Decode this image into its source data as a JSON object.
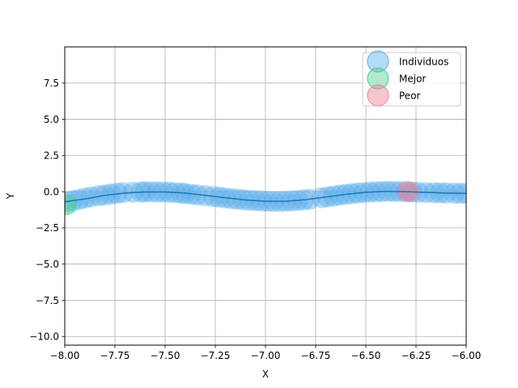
{
  "chart_data": {
    "type": "scatter",
    "title": "",
    "xlabel": "X",
    "ylabel": "Y",
    "xlim": [
      -8.0,
      -6.0
    ],
    "ylim": [
      -10.6,
      10.0
    ],
    "xticks": [
      -8.0,
      -7.75,
      -7.5,
      -7.25,
      -7.0,
      -6.75,
      -6.5,
      -6.25,
      -6.0
    ],
    "xtick_labels": [
      "−8.00",
      "−7.75",
      "−7.50",
      "−7.25",
      "−7.00",
      "−6.75",
      "−6.50",
      "−6.25",
      "−6.00"
    ],
    "yticks": [
      -10.0,
      -7.5,
      -5.0,
      -2.5,
      0.0,
      2.5,
      5.0,
      7.5
    ],
    "ytick_labels": [
      "−10.0",
      "−7.5",
      "−5.0",
      "−2.5",
      "0.0",
      "2.5",
      "5.0",
      "7.5"
    ],
    "grid": true,
    "legend_position": "top-right",
    "curve": {
      "x": [
        -8.0,
        -7.9,
        -7.8,
        -7.7,
        -7.6,
        -7.5,
        -7.4,
        -7.3,
        -7.2,
        -7.1,
        -7.0,
        -6.9,
        -6.8,
        -6.7,
        -6.6,
        -6.5,
        -6.4,
        -6.3,
        -6.2,
        -6.1,
        -6.0
      ],
      "y": [
        -0.7,
        -0.5,
        -0.25,
        -0.1,
        -0.02,
        -0.02,
        -0.1,
        -0.25,
        -0.42,
        -0.57,
        -0.66,
        -0.66,
        -0.55,
        -0.37,
        -0.18,
        -0.04,
        0.02,
        0.0,
        -0.05,
        -0.1,
        -0.12
      ],
      "color": "#1f77b4"
    },
    "series": [
      {
        "name": "Individuos",
        "color": "#5aaeeb",
        "x": [
          -7.99,
          -7.96,
          -7.93,
          -7.9,
          -7.87,
          -7.83,
          -7.8,
          -7.77,
          -7.74,
          -7.71,
          -7.66,
          -7.62,
          -7.6,
          -7.57,
          -7.54,
          -7.51,
          -7.48,
          -7.45,
          -7.42,
          -7.4,
          -7.37,
          -7.34,
          -7.3,
          -7.26,
          -7.23,
          -7.2,
          -7.17,
          -7.14,
          -7.11,
          -7.08,
          -7.05,
          -7.02,
          -6.99,
          -6.96,
          -6.93,
          -6.9,
          -6.87,
          -6.84,
          -6.81,
          -6.78,
          -6.72,
          -6.69,
          -6.66,
          -6.63,
          -6.6,
          -6.57,
          -6.54,
          -6.51,
          -6.48,
          -6.45,
          -6.42,
          -6.39,
          -6.36,
          -6.33,
          -6.3,
          -6.27,
          -6.24,
          -6.2,
          -6.16,
          -6.13,
          -6.1,
          -6.06,
          -6.03,
          -6.0
        ],
        "y": [
          -0.7,
          -0.62,
          -0.55,
          -0.45,
          -0.36,
          -0.28,
          -0.22,
          -0.16,
          -0.11,
          -0.07,
          -0.04,
          -0.02,
          -0.01,
          -0.01,
          -0.02,
          -0.02,
          -0.04,
          -0.07,
          -0.1,
          -0.13,
          -0.18,
          -0.22,
          -0.28,
          -0.34,
          -0.38,
          -0.43,
          -0.48,
          -0.52,
          -0.56,
          -0.59,
          -0.62,
          -0.64,
          -0.66,
          -0.67,
          -0.67,
          -0.66,
          -0.64,
          -0.61,
          -0.57,
          -0.52,
          -0.42,
          -0.36,
          -0.3,
          -0.24,
          -0.19,
          -0.14,
          -0.09,
          -0.06,
          -0.03,
          -0.01,
          0.01,
          0.02,
          0.02,
          0.01,
          0.0,
          -0.02,
          -0.04,
          -0.06,
          -0.07,
          -0.08,
          -0.09,
          -0.1,
          -0.11,
          -0.12
        ]
      },
      {
        "name": "Mejor",
        "color": "#4fcf93",
        "x": [
          -7.99
        ],
        "y": [
          -0.9
        ]
      },
      {
        "name": "Peor",
        "color": "#f08094",
        "x": [
          -6.29
        ],
        "y": [
          0.0
        ]
      }
    ]
  }
}
